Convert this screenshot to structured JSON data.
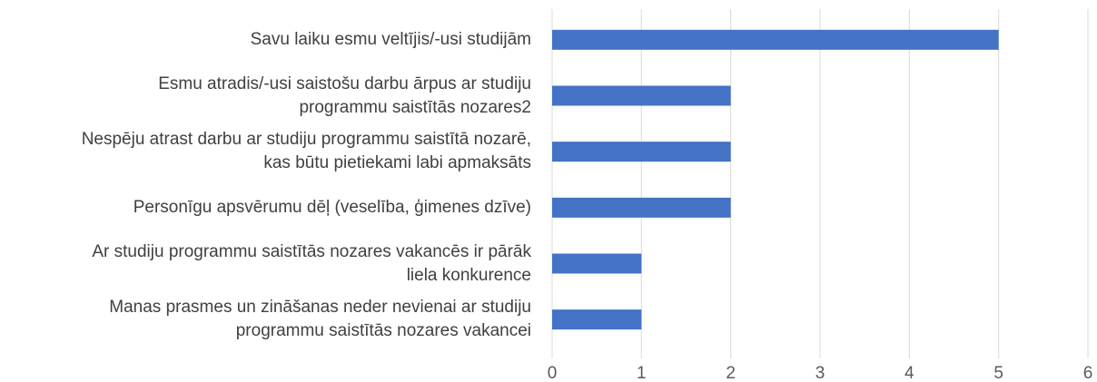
{
  "chart_data": {
    "type": "barh",
    "categories": [
      "Savu laiku esmu veltījis/-usi studijām",
      "Esmu atradis/-usi saistošu darbu ārpus ar studiju\nprogrammu saistītās nozares2",
      "Nespēju atrast darbu ar studiju programmu saistītā nozarē,\nkas būtu pietiekami labi apmaksāts",
      "Personīgu apsvērumu dēļ (veselība, ģimenes dzīve)",
      "Ar studiju programmu saistītās nozares vakancēs ir pārāk\nliela konkurence",
      "Manas prasmes un zināšanas neder nevienai ar studiju\nprogrammu saistītās nozares vakancei"
    ],
    "values": [
      5,
      2,
      2,
      2,
      1,
      1
    ],
    "color": "#4472c4",
    "xlim": [
      0,
      6
    ],
    "xticks": [
      0,
      1,
      2,
      3,
      4,
      5,
      6
    ],
    "grid": true
  }
}
